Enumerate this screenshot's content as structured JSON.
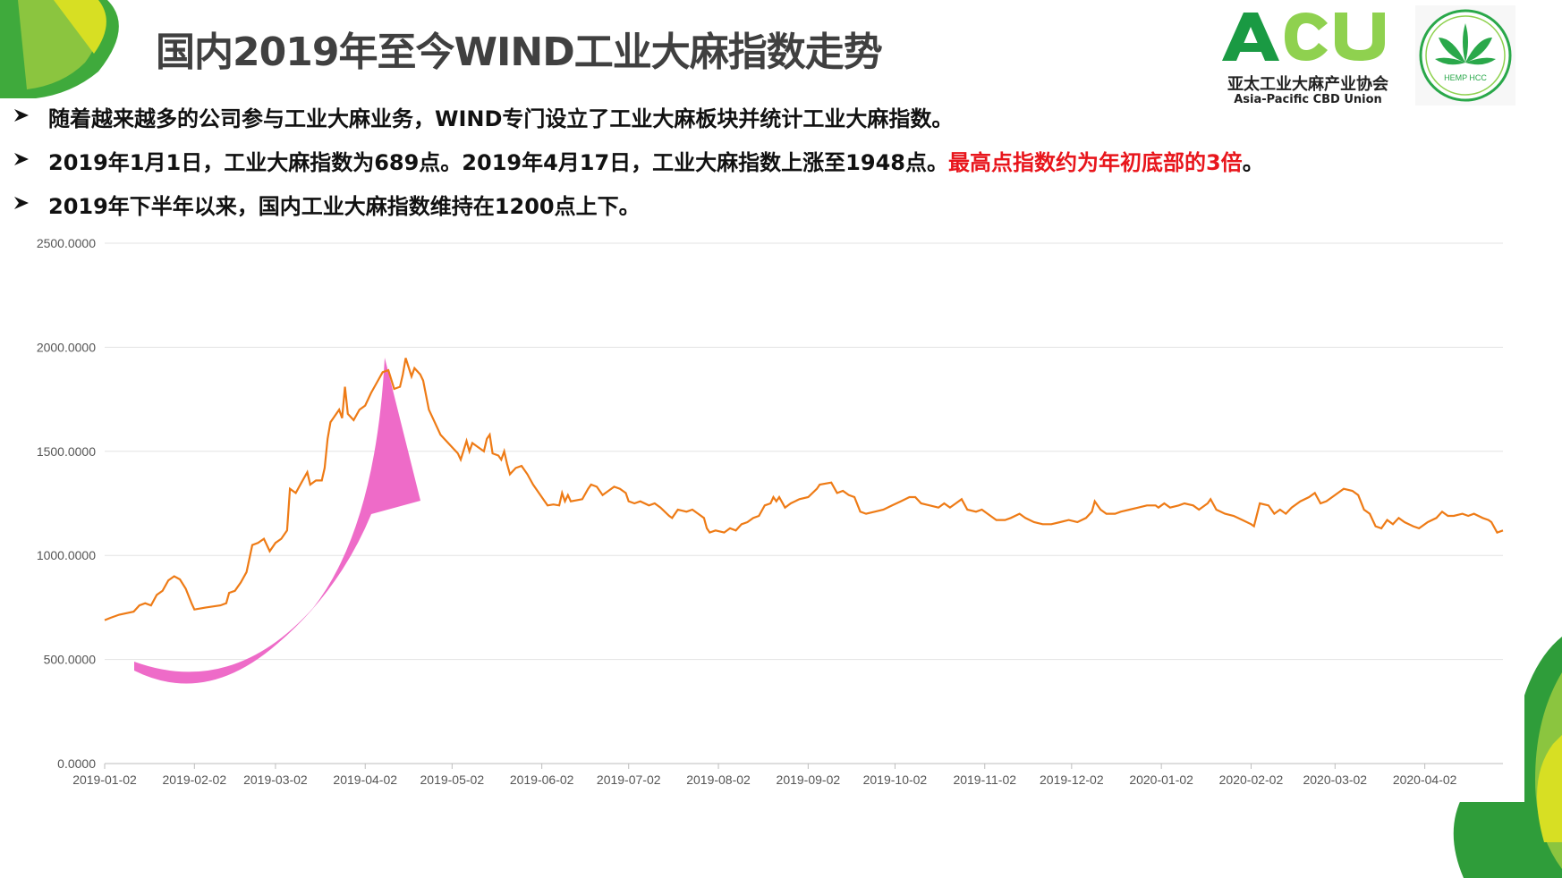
{
  "slide": {
    "title": "国内2019年至今WIND工业大麻指数走势",
    "bullets": [
      {
        "text": "随着越来越多的公司参与工业大麻业务，WIND专门设立了工业大麻板块并统计工业大麻指数。",
        "highlight": "",
        "tail": ""
      },
      {
        "text": "2019年1月1日，工业大麻指数为689点。2019年4月17日，工业大麻指数上涨至1948点。",
        "highlight": "最高点指数约为年初底部的3倍",
        "tail": "。"
      },
      {
        "text": "2019年下半年以来，国内工业大麻指数维持在1200点上下。",
        "highlight": "",
        "tail": ""
      }
    ],
    "bullet_icon": "arrow-bullet-icon"
  },
  "logo_acu": {
    "letters": "ACU",
    "cn": "亚太工业大麻产业协会",
    "en": "Asia-Pacific CBD Union"
  },
  "logo_hemp": {
    "text": "HEMP HCC",
    "icon": "cannabis-leaf-icon"
  },
  "colors": {
    "line": "#ee7b16",
    "arrow": "#ee6bc8",
    "highlight": "#e8161c",
    "brand_green": "#1a9a43",
    "brand_light_green": "#8fd14f"
  },
  "chart_data": {
    "type": "line",
    "title": "",
    "xlabel": "",
    "ylabel": "",
    "ylim": [
      0,
      2500
    ],
    "yticks": [
      "0.0000",
      "500.0000",
      "1000.0000",
      "1500.0000",
      "2000.0000",
      "2500.0000"
    ],
    "xticks": [
      {
        "label": "2019-01-02",
        "day": 0
      },
      {
        "label": "2019-02-02",
        "day": 31
      },
      {
        "label": "2019-03-02",
        "day": 59
      },
      {
        "label": "2019-04-02",
        "day": 90
      },
      {
        "label": "2019-05-02",
        "day": 120
      },
      {
        "label": "2019-06-02",
        "day": 151
      },
      {
        "label": "2019-07-02",
        "day": 181
      },
      {
        "label": "2019-08-02",
        "day": 212
      },
      {
        "label": "2019-09-02",
        "day": 243
      },
      {
        "label": "2019-10-02",
        "day": 273
      },
      {
        "label": "2019-11-02",
        "day": 304
      },
      {
        "label": "2019-12-02",
        "day": 334
      },
      {
        "label": "2020-01-02",
        "day": 365
      },
      {
        "label": "2020-02-02",
        "day": 396
      },
      {
        "label": "2020-03-02",
        "day": 425
      },
      {
        "label": "2020-04-02",
        "day": 456
      }
    ],
    "x_end_day": 483,
    "grid": true,
    "annotation": "pink upward arrow indicating the rise",
    "series": [
      {
        "name": "",
        "color": "#ee7b16",
        "points": [
          [
            0,
            689
          ],
          [
            2,
            700
          ],
          [
            5,
            715
          ],
          [
            10,
            730
          ],
          [
            12,
            760
          ],
          [
            14,
            770
          ],
          [
            16,
            760
          ],
          [
            18,
            810
          ],
          [
            20,
            830
          ],
          [
            22,
            880
          ],
          [
            24,
            900
          ],
          [
            26,
            885
          ],
          [
            28,
            840
          ],
          [
            30,
            770
          ],
          [
            31,
            740
          ],
          [
            35,
            750
          ],
          [
            40,
            760
          ],
          [
            42,
            770
          ],
          [
            43,
            820
          ],
          [
            45,
            830
          ],
          [
            47,
            870
          ],
          [
            49,
            920
          ],
          [
            51,
            1050
          ],
          [
            53,
            1060
          ],
          [
            55,
            1080
          ],
          [
            57,
            1020
          ],
          [
            59,
            1060
          ],
          [
            61,
            1080
          ],
          [
            63,
            1120
          ],
          [
            64,
            1320
          ],
          [
            66,
            1300
          ],
          [
            68,
            1350
          ],
          [
            70,
            1400
          ],
          [
            71,
            1340
          ],
          [
            73,
            1360
          ],
          [
            75,
            1360
          ],
          [
            76,
            1420
          ],
          [
            77,
            1560
          ],
          [
            78,
            1640
          ],
          [
            79,
            1660
          ],
          [
            81,
            1700
          ],
          [
            82,
            1660
          ],
          [
            83,
            1810
          ],
          [
            84,
            1680
          ],
          [
            86,
            1650
          ],
          [
            88,
            1700
          ],
          [
            90,
            1720
          ],
          [
            92,
            1780
          ],
          [
            94,
            1830
          ],
          [
            96,
            1880
          ],
          [
            98,
            1890
          ],
          [
            100,
            1800
          ],
          [
            102,
            1810
          ],
          [
            103,
            1870
          ],
          [
            104,
            1948
          ],
          [
            106,
            1860
          ],
          [
            107,
            1900
          ],
          [
            109,
            1870
          ],
          [
            110,
            1840
          ],
          [
            111,
            1770
          ],
          [
            112,
            1700
          ],
          [
            114,
            1640
          ],
          [
            116,
            1580
          ],
          [
            118,
            1550
          ],
          [
            120,
            1520
          ],
          [
            122,
            1490
          ],
          [
            123,
            1460
          ],
          [
            125,
            1550
          ],
          [
            126,
            1500
          ],
          [
            127,
            1540
          ],
          [
            129,
            1520
          ],
          [
            131,
            1500
          ],
          [
            132,
            1560
          ],
          [
            133,
            1580
          ],
          [
            134,
            1490
          ],
          [
            136,
            1480
          ],
          [
            137,
            1460
          ],
          [
            138,
            1500
          ],
          [
            139,
            1440
          ],
          [
            140,
            1390
          ],
          [
            142,
            1420
          ],
          [
            144,
            1430
          ],
          [
            146,
            1390
          ],
          [
            148,
            1340
          ],
          [
            150,
            1300
          ],
          [
            152,
            1260
          ],
          [
            153,
            1240
          ],
          [
            155,
            1245
          ],
          [
            157,
            1240
          ],
          [
            158,
            1300
          ],
          [
            159,
            1260
          ],
          [
            160,
            1290
          ],
          [
            161,
            1260
          ],
          [
            165,
            1270
          ],
          [
            167,
            1320
          ],
          [
            168,
            1340
          ],
          [
            170,
            1330
          ],
          [
            172,
            1290
          ],
          [
            174,
            1310
          ],
          [
            176,
            1330
          ],
          [
            178,
            1320
          ],
          [
            180,
            1300
          ],
          [
            181,
            1260
          ],
          [
            183,
            1250
          ],
          [
            185,
            1260
          ],
          [
            188,
            1240
          ],
          [
            190,
            1250
          ],
          [
            192,
            1230
          ],
          [
            195,
            1190
          ],
          [
            196,
            1180
          ],
          [
            198,
            1220
          ],
          [
            201,
            1210
          ],
          [
            203,
            1220
          ],
          [
            205,
            1200
          ],
          [
            207,
            1180
          ],
          [
            208,
            1130
          ],
          [
            209,
            1110
          ],
          [
            211,
            1120
          ],
          [
            214,
            1110
          ],
          [
            216,
            1130
          ],
          [
            218,
            1120
          ],
          [
            220,
            1150
          ],
          [
            222,
            1160
          ],
          [
            224,
            1180
          ],
          [
            226,
            1190
          ],
          [
            228,
            1240
          ],
          [
            230,
            1250
          ],
          [
            231,
            1280
          ],
          [
            232,
            1260
          ],
          [
            233,
            1280
          ],
          [
            235,
            1230
          ],
          [
            237,
            1250
          ],
          [
            240,
            1270
          ],
          [
            243,
            1280
          ],
          [
            246,
            1320
          ],
          [
            247,
            1340
          ],
          [
            251,
            1350
          ],
          [
            253,
            1300
          ],
          [
            255,
            1310
          ],
          [
            257,
            1290
          ],
          [
            259,
            1280
          ],
          [
            261,
            1210
          ],
          [
            263,
            1200
          ],
          [
            266,
            1210
          ],
          [
            269,
            1220
          ],
          [
            272,
            1240
          ],
          [
            275,
            1260
          ],
          [
            278,
            1280
          ],
          [
            280,
            1280
          ],
          [
            282,
            1250
          ],
          [
            285,
            1240
          ],
          [
            288,
            1230
          ],
          [
            290,
            1250
          ],
          [
            292,
            1230
          ],
          [
            294,
            1250
          ],
          [
            296,
            1270
          ],
          [
            298,
            1220
          ],
          [
            301,
            1210
          ],
          [
            303,
            1220
          ],
          [
            306,
            1190
          ],
          [
            308,
            1170
          ],
          [
            311,
            1170
          ],
          [
            313,
            1180
          ],
          [
            316,
            1200
          ],
          [
            318,
            1180
          ],
          [
            321,
            1160
          ],
          [
            324,
            1150
          ],
          [
            327,
            1150
          ],
          [
            330,
            1160
          ],
          [
            333,
            1170
          ],
          [
            336,
            1160
          ],
          [
            339,
            1180
          ],
          [
            341,
            1210
          ],
          [
            342,
            1260
          ],
          [
            344,
            1220
          ],
          [
            346,
            1200
          ],
          [
            349,
            1200
          ],
          [
            351,
            1210
          ],
          [
            354,
            1220
          ],
          [
            357,
            1230
          ],
          [
            360,
            1240
          ],
          [
            363,
            1240
          ],
          [
            364,
            1230
          ],
          [
            366,
            1250
          ],
          [
            368,
            1230
          ],
          [
            371,
            1240
          ],
          [
            373,
            1250
          ],
          [
            376,
            1240
          ],
          [
            378,
            1220
          ],
          [
            381,
            1250
          ],
          [
            382,
            1270
          ],
          [
            384,
            1220
          ],
          [
            387,
            1200
          ],
          [
            390,
            1190
          ],
          [
            393,
            1170
          ],
          [
            396,
            1150
          ],
          [
            397,
            1140
          ],
          [
            399,
            1250
          ],
          [
            402,
            1240
          ],
          [
            404,
            1200
          ],
          [
            406,
            1220
          ],
          [
            408,
            1200
          ],
          [
            410,
            1230
          ],
          [
            413,
            1260
          ],
          [
            416,
            1280
          ],
          [
            418,
            1300
          ],
          [
            420,
            1250
          ],
          [
            422,
            1260
          ],
          [
            424,
            1280
          ],
          [
            426,
            1300
          ],
          [
            428,
            1320
          ],
          [
            431,
            1310
          ],
          [
            433,
            1290
          ],
          [
            435,
            1220
          ],
          [
            437,
            1200
          ],
          [
            439,
            1140
          ],
          [
            441,
            1130
          ],
          [
            443,
            1170
          ],
          [
            445,
            1150
          ],
          [
            447,
            1180
          ],
          [
            449,
            1160
          ],
          [
            452,
            1140
          ],
          [
            454,
            1130
          ],
          [
            457,
            1160
          ],
          [
            460,
            1180
          ],
          [
            462,
            1210
          ],
          [
            464,
            1190
          ],
          [
            466,
            1190
          ],
          [
            469,
            1200
          ],
          [
            471,
            1190
          ],
          [
            473,
            1200
          ],
          [
            476,
            1180
          ],
          [
            478,
            1170
          ],
          [
            479,
            1160
          ],
          [
            481,
            1110
          ],
          [
            483,
            1120
          ]
        ]
      }
    ]
  }
}
